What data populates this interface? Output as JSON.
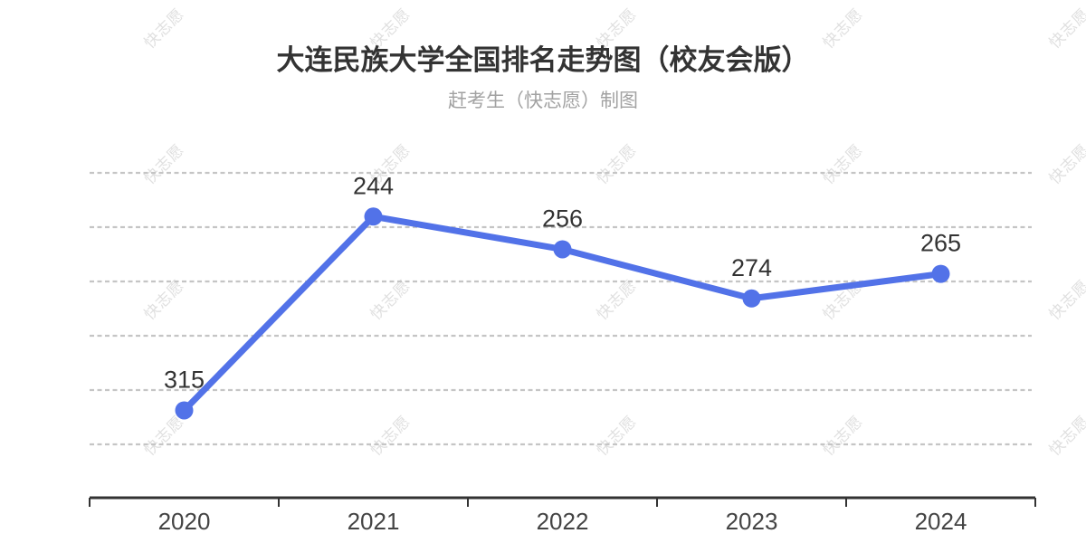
{
  "chart_data": {
    "type": "line",
    "title": "大连民族大学全国排名走势图（校友会版）",
    "subtitle": "赶考生（快志愿）制图",
    "categories": [
      "2020",
      "2021",
      "2022",
      "2023",
      "2024"
    ],
    "values": [
      315,
      244,
      256,
      274,
      265
    ],
    "point_labels": [
      "315",
      "244",
      "256",
      "274",
      "265"
    ],
    "xlabel": "",
    "ylabel": "",
    "ylim": [
      228,
      347
    ],
    "y_axis_inverted": true,
    "y_tick_labels_shown": false,
    "grid": "horizontal-dashed",
    "legend": "none"
  },
  "watermark": {
    "text": "快志愿",
    "grid": {
      "x_start": 180,
      "x_step": 250,
      "cols": 5,
      "y_start": 30,
      "y_step": 150,
      "rows": 4
    }
  },
  "colors": {
    "background": "#ffffff",
    "line": "#5272e8",
    "point": "#5272e8",
    "grid_line": "#c5c5c5",
    "axis": "#333333",
    "title": "#333333",
    "subtitle": "#a2a2a2",
    "value_label": "#333333",
    "x_label": "#444444",
    "watermark": "#e0e0e0"
  }
}
